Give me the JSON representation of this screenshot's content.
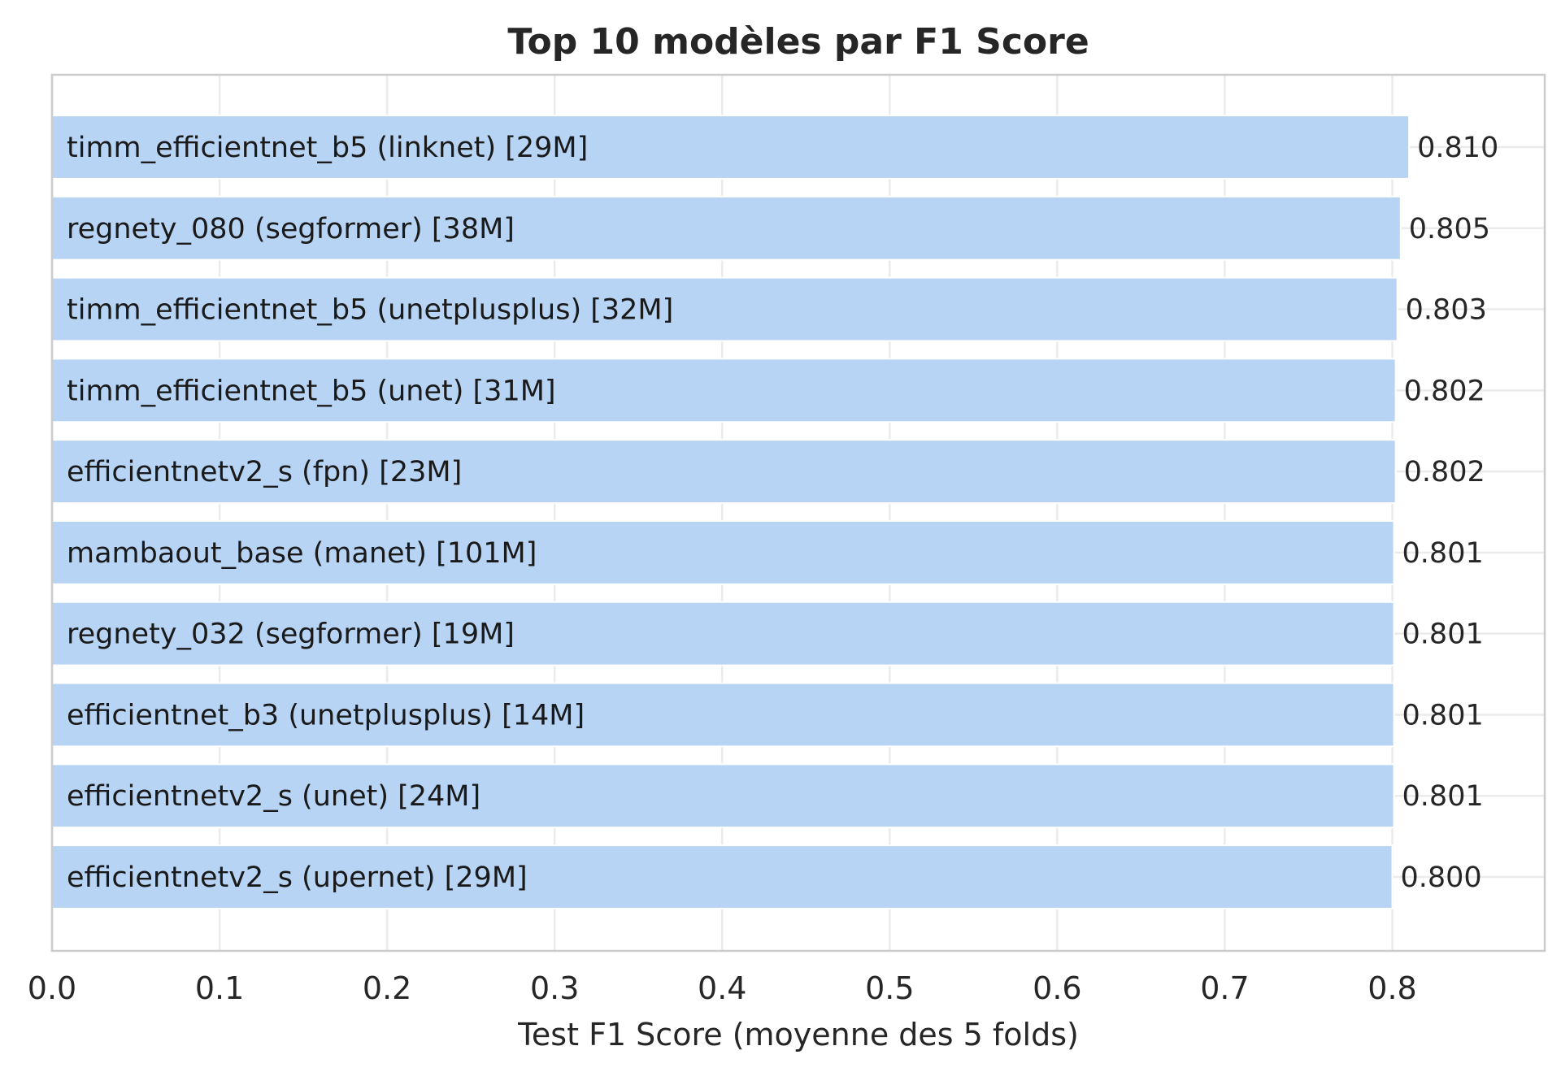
{
  "chart_data": {
    "type": "bar",
    "orientation": "horizontal",
    "title": "Top 10 modèles par F1 Score",
    "xlabel": "Test F1 Score (moyenne des 5 folds)",
    "ylabel": "",
    "xlim": [
      0,
      0.891
    ],
    "xticks": [
      0.0,
      0.1,
      0.2,
      0.3,
      0.4,
      0.5,
      0.6,
      0.7,
      0.8
    ],
    "xtick_labels": [
      "0.0",
      "0.1",
      "0.2",
      "0.3",
      "0.4",
      "0.5",
      "0.6",
      "0.7",
      "0.8"
    ],
    "grid": true,
    "bar_color": "#b7d4f5",
    "categories": [
      "timm_efficientnet_b5 (linknet) [29M]",
      "regnety_080 (segformer) [38M]",
      "timm_efficientnet_b5 (unetplusplus) [32M]",
      "timm_efficientnet_b5 (unet) [31M]",
      "efficientnetv2_s (fpn) [23M]",
      "mambaout_base (manet) [101M]",
      "regnety_032 (segformer) [19M]",
      "efficientnet_b3 (unetplusplus) [14M]",
      "efficientnetv2_s (unet) [24M]",
      "efficientnetv2_s (upernet) [29M]"
    ],
    "values": [
      0.81,
      0.805,
      0.803,
      0.802,
      0.802,
      0.801,
      0.801,
      0.801,
      0.801,
      0.8
    ],
    "value_labels": [
      "0.810",
      "0.805",
      "0.803",
      "0.802",
      "0.802",
      "0.801",
      "0.801",
      "0.801",
      "0.801",
      "0.800"
    ]
  }
}
